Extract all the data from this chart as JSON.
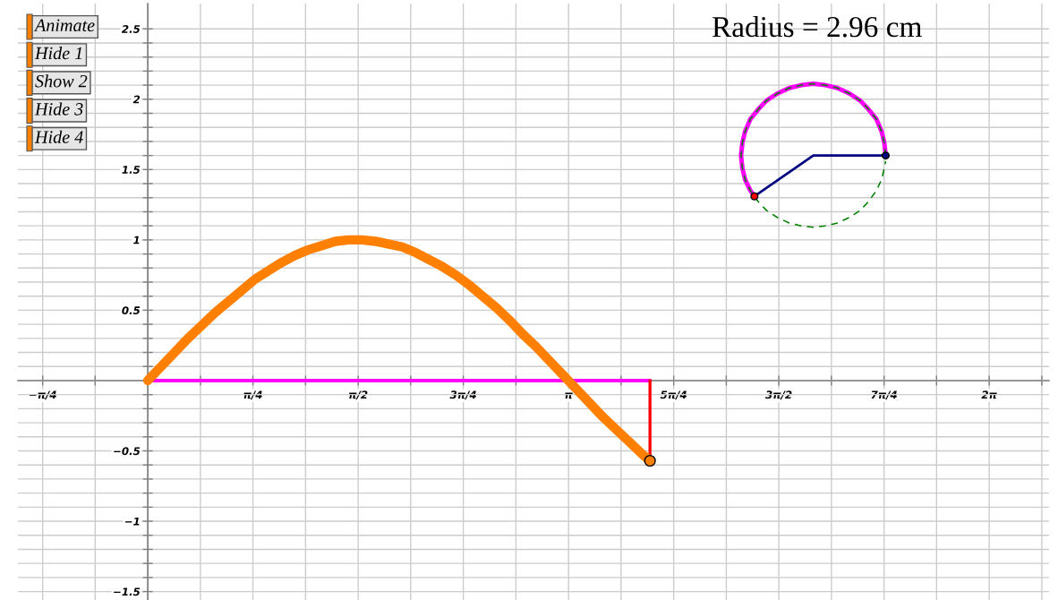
{
  "chart_data": {
    "type": "line",
    "annotations": [
      "Radius = 2.96 cm",
      "Animate",
      "Hide 1",
      "Show 2",
      "Hide 3",
      "Hide 4"
    ],
    "xlim": [
      -0.97,
      6.73
    ],
    "ylim": [
      -1.56,
      2.68
    ],
    "xticks": [
      {
        "value": -0.785,
        "label": "−π/4"
      },
      {
        "value": -0.393,
        "label": null
      },
      {
        "value": 0,
        "label": null
      },
      {
        "value": 0.393,
        "label": null
      },
      {
        "value": 0.785,
        "label": "π/4"
      },
      {
        "value": 1.178,
        "label": null
      },
      {
        "value": 1.571,
        "label": "π/2"
      },
      {
        "value": 1.963,
        "label": null
      },
      {
        "value": 2.356,
        "label": "3π/4"
      },
      {
        "value": 2.749,
        "label": null
      },
      {
        "value": 3.142,
        "label": "π"
      },
      {
        "value": 3.534,
        "label": null
      },
      {
        "value": 3.927,
        "label": "5π/4"
      },
      {
        "value": 4.32,
        "label": null
      },
      {
        "value": 4.712,
        "label": "3π/2"
      },
      {
        "value": 5.105,
        "label": null
      },
      {
        "value": 5.498,
        "label": "7π/4"
      },
      {
        "value": 5.89,
        "label": null
      },
      {
        "value": 6.283,
        "label": "2π"
      },
      {
        "value": 6.676,
        "label": null
      }
    ],
    "yticks": [
      {
        "value": -1.5,
        "label": "−1.5"
      },
      {
        "value": -1.4,
        "label": null
      },
      {
        "value": -1.3,
        "label": null
      },
      {
        "value": -1.2,
        "label": null
      },
      {
        "value": -1.1,
        "label": null
      },
      {
        "value": -1,
        "label": "−1"
      },
      {
        "value": -0.9,
        "label": null
      },
      {
        "value": -0.8,
        "label": null
      },
      {
        "value": -0.7,
        "label": null
      },
      {
        "value": -0.6,
        "label": null
      },
      {
        "value": -0.5,
        "label": "−0.5"
      },
      {
        "value": -0.4,
        "label": null
      },
      {
        "value": -0.3,
        "label": null
      },
      {
        "value": -0.2,
        "label": null
      },
      {
        "value": -0.1,
        "label": null
      },
      {
        "value": 0,
        "label": null
      },
      {
        "value": 0.1,
        "label": null
      },
      {
        "value": 0.2,
        "label": null
      },
      {
        "value": 0.3,
        "label": null
      },
      {
        "value": 0.4,
        "label": null
      },
      0.5,
      {
        "value": 0.6,
        "label": null
      },
      {
        "value": 0.7,
        "label": null
      },
      {
        "value": 0.8,
        "label": null
      },
      {
        "value": 0.9,
        "label": null
      },
      1,
      {
        "value": 1.1,
        "label": null
      },
      {
        "value": 1.2,
        "label": null
      },
      {
        "value": 1.3,
        "label": null
      },
      {
        "value": 1.4,
        "label": null
      },
      1.5,
      {
        "value": 1.6,
        "label": null
      },
      {
        "value": 1.7,
        "label": null
      },
      {
        "value": 1.8,
        "label": null
      },
      {
        "value": 1.9,
        "label": null
      },
      2,
      {
        "value": 2.1,
        "label": null
      },
      {
        "value": 2.2,
        "label": null
      },
      {
        "value": 2.3,
        "label": null
      },
      {
        "value": 2.4,
        "label": null
      },
      2.5
    ],
    "grid": true,
    "series": [
      {
        "color": "#ff00ff",
        "x": [
          0,
          3.75
        ],
        "values": [
          0,
          0
        ]
      },
      {
        "color": "#ff0000",
        "x": [
          3.75,
          3.75
        ],
        "values": [
          0,
          -0.57
        ]
      },
      {
        "color": "#ff8000",
        "x": [
          0,
          0.1,
          0.2,
          0.3,
          0.4,
          0.5,
          0.6,
          0.7,
          0.8,
          0.9,
          1.0,
          1.1,
          1.2,
          1.3,
          1.4,
          1.5,
          1.6,
          1.7,
          1.8,
          1.9,
          2.0,
          2.1,
          2.2,
          2.3,
          2.4,
          2.5,
          2.6,
          2.7,
          2.8,
          2.9,
          3.0,
          3.1,
          3.2,
          3.3,
          3.4,
          3.5,
          3.6,
          3.7,
          3.75
        ],
        "values": [
          0,
          0.1,
          0.2,
          0.3,
          0.39,
          0.48,
          0.56,
          0.64,
          0.72,
          0.78,
          0.84,
          0.89,
          0.93,
          0.96,
          0.99,
          1.0,
          1.0,
          0.99,
          0.97,
          0.95,
          0.91,
          0.86,
          0.81,
          0.75,
          0.68,
          0.6,
          0.52,
          0.43,
          0.33,
          0.24,
          0.14,
          0.04,
          -0.06,
          -0.16,
          -0.26,
          -0.35,
          -0.44,
          -0.53,
          -0.57
        ]
      },
      {
        "type": "scatter",
        "color": "#ff8000",
        "marker": "circle",
        "x": [
          3.75
        ],
        "values": [
          -0.57
        ]
      },
      {
        "color": "#ff00ff",
        "x": [
          5.51,
          5.5,
          5.48,
          5.44,
          5.38,
          5.32,
          5.24,
          5.15,
          5.06,
          4.97,
          4.88,
          4.79,
          4.7,
          4.62,
          4.56,
          4.5,
          4.46,
          4.44,
          4.43,
          4.44,
          4.46,
          4.5,
          4.53
        ],
        "values": [
          1.6,
          1.69,
          1.77,
          1.86,
          1.93,
          1.99,
          2.04,
          2.08,
          2.1,
          2.11,
          2.1,
          2.08,
          2.04,
          1.99,
          1.93,
          1.86,
          1.77,
          1.69,
          1.6,
          1.51,
          1.43,
          1.35,
          1.31
        ]
      },
      {
        "color": "#008000",
        "line_style": "dashed",
        "x": [
          5.51,
          5.5,
          5.48,
          5.44,
          5.38,
          5.32,
          5.24,
          5.15,
          5.06,
          4.97,
          4.88,
          4.79,
          4.7,
          4.62,
          4.56,
          4.5,
          4.46,
          4.44,
          4.43,
          4.44,
          4.46,
          4.5,
          4.56,
          4.62,
          4.7,
          4.79,
          4.88,
          4.97,
          5.06,
          5.15,
          5.24,
          5.32,
          5.38,
          5.44,
          5.48,
          5.5,
          5.51
        ],
        "values": [
          1.6,
          1.69,
          1.77,
          1.86,
          1.93,
          1.99,
          2.04,
          2.08,
          2.1,
          2.11,
          2.1,
          2.08,
          2.04,
          1.99,
          1.93,
          1.86,
          1.77,
          1.69,
          1.6,
          1.51,
          1.43,
          1.35,
          1.27,
          1.21,
          1.16,
          1.12,
          1.1,
          1.09,
          1.1,
          1.12,
          1.16,
          1.21,
          1.27,
          1.35,
          1.43,
          1.51,
          1.56
        ]
      },
      {
        "color": "#000080",
        "x": [
          5.51,
          4.97,
          4.53
        ],
        "values": [
          1.6,
          1.6,
          1.31
        ]
      },
      {
        "type": "scatter",
        "color": "#000080",
        "marker": "circle",
        "x": [
          5.51
        ],
        "values": [
          1.6
        ]
      },
      {
        "type": "scatter",
        "color": "#ff0000",
        "marker": "circle",
        "x": [
          4.53
        ],
        "values": [
          1.31
        ]
      }
    ]
  }
}
